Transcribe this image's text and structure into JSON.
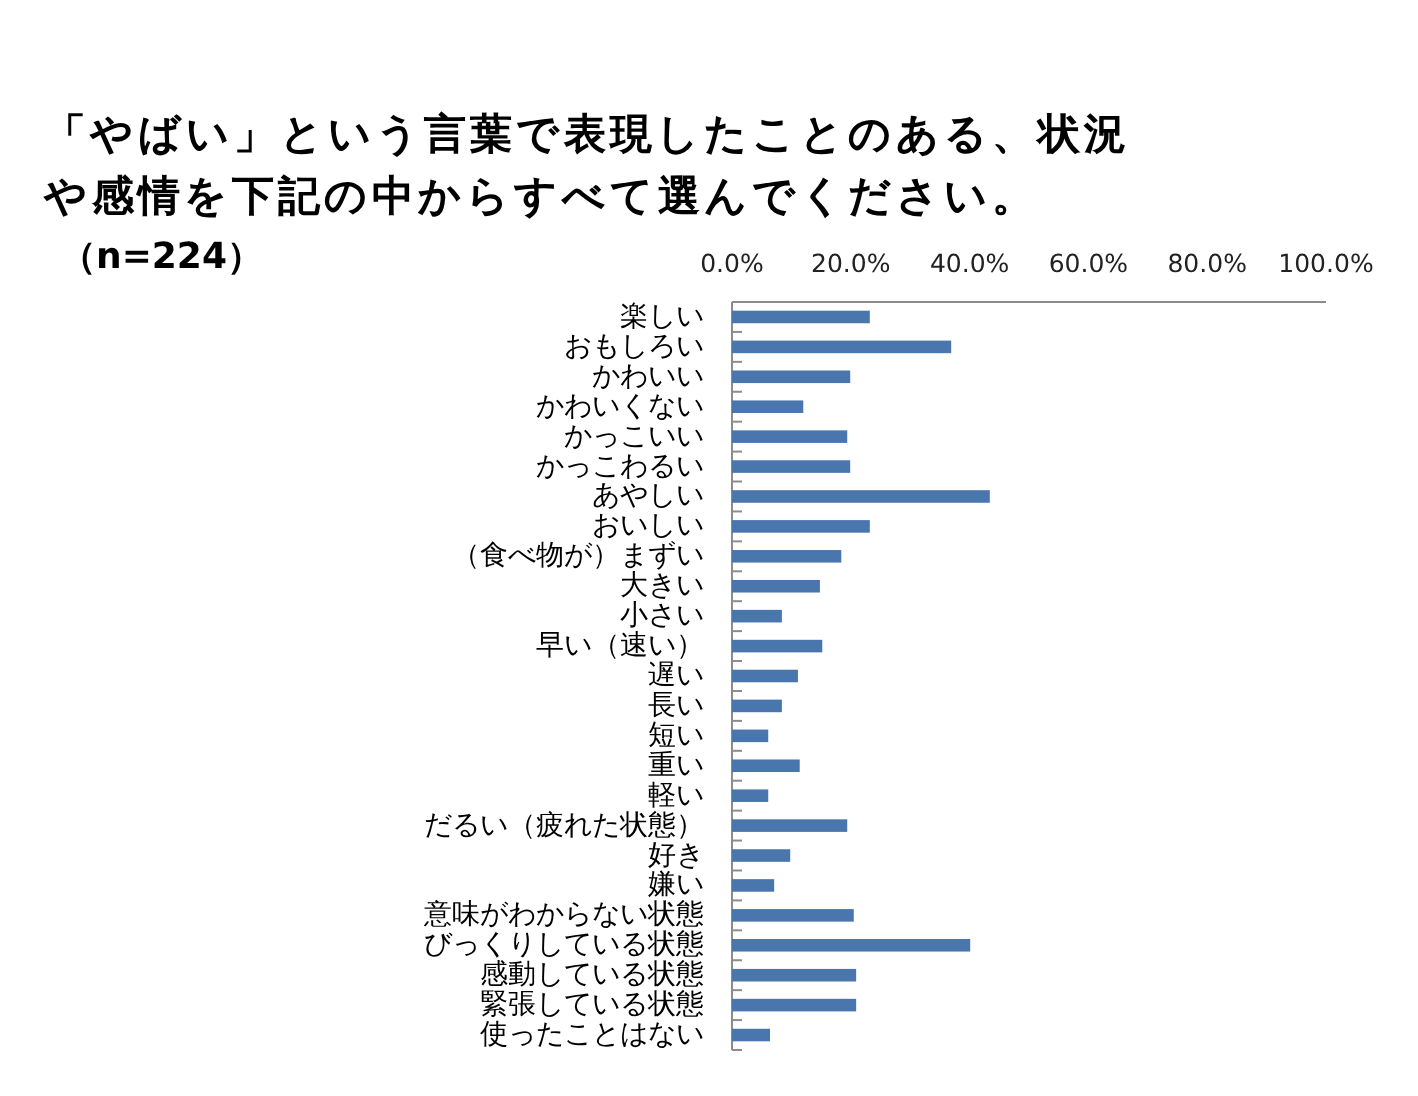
{
  "chart_data": {
    "type": "bar",
    "orientation": "horizontal",
    "title": "「やばい」という言葉で表現したことのある、状況や感情を下記の中からすべて選んでください。",
    "subtitle": "（n=224）",
    "categories": [
      "楽しい",
      "おもしろい",
      "かわいい",
      "かわいくない",
      "かっこいい",
      "かっこわるい",
      "あやしい",
      "おいしい",
      "（食べ物が）まずい",
      "大きい",
      "小さい",
      "早い（速い）",
      "遅い",
      "長い",
      "短い",
      "重い",
      "軽い",
      "だるい（疲れた状態）",
      "好き",
      "嫌い",
      "意味がわからない状態",
      "びっくりしている状態",
      "感動している状態",
      "緊張している状態",
      "使ったことはない"
    ],
    "values": [
      23.2,
      36.9,
      19.9,
      12.0,
      19.4,
      19.9,
      43.4,
      23.2,
      18.4,
      14.8,
      8.4,
      15.2,
      11.1,
      8.4,
      6.1,
      11.4,
      6.1,
      19.4,
      9.8,
      7.1,
      20.5,
      40.1,
      20.9,
      20.9,
      6.4
    ],
    "color": "#4a76ae",
    "xlim": [
      0,
      100
    ],
    "xticks": [
      {
        "value": 0,
        "label": "0.0%"
      },
      {
        "value": 20,
        "label": "20.0%"
      },
      {
        "value": 40,
        "label": "40.0%"
      },
      {
        "value": 60,
        "label": "60.0%"
      },
      {
        "value": 80,
        "label": "80.0%"
      },
      {
        "value": 100,
        "label": "100.0%"
      }
    ]
  }
}
